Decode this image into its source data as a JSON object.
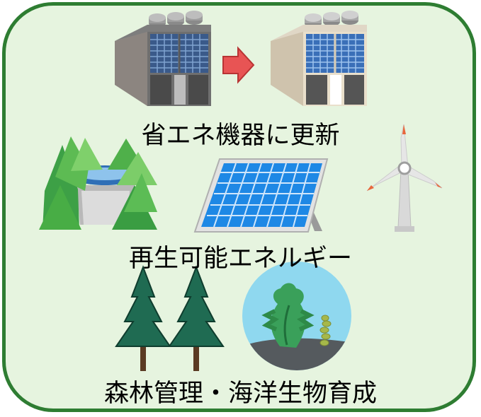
{
  "labels": {
    "energy_saving": "省エネ機器に更新",
    "renewable": "再生可能エネルギー",
    "forest_ocean": "森林管理・海洋生物育成"
  },
  "colors": {
    "frame": "#2e7d32",
    "background": "#e6f4df",
    "arrow": "#e85454",
    "solar_panel": "#1e88e5",
    "tree": "#1f6b52",
    "sea_circle": "#8fd8ef"
  },
  "icons": [
    "old-hvac-unit-icon",
    "arrow-right-icon",
    "new-hvac-unit-icon",
    "hydro-dam-icon",
    "solar-panel-icon",
    "wind-turbine-icon",
    "cedar-tree-icon",
    "seaweed-icon"
  ]
}
